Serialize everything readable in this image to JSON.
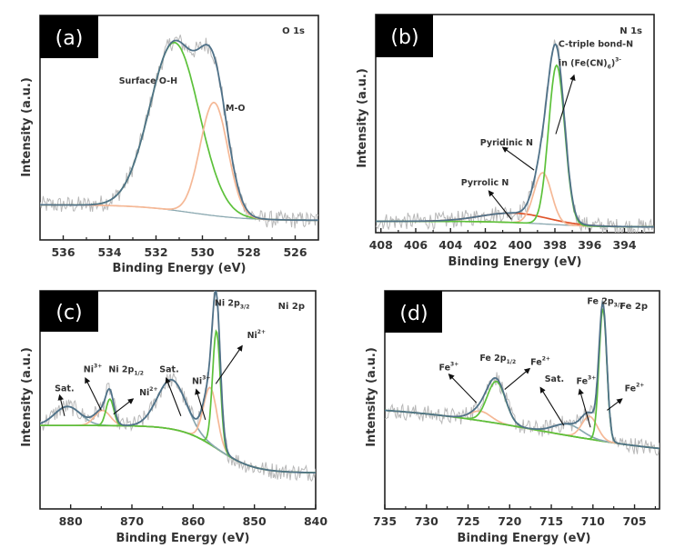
{
  "figure": {
    "colors": {
      "raw": "#b8b8b8",
      "envelope": "#4f7188",
      "component_green": "#5cc13a",
      "component_orange": "#f5b896",
      "component_red": "#e0552b",
      "background_line": "#8aa8b0",
      "axis": "#222222",
      "tag_bg": "#000000"
    }
  },
  "chart_data": [
    {
      "type": "line",
      "panel": "(a)",
      "title": "O 1s",
      "xlabel": "Binding Energy (eV)",
      "ylabel": "Intensity (a.u.)",
      "xlim": [
        537,
        525
      ],
      "ylim": [
        0,
        1.15
      ],
      "x_reversed": true,
      "xticks": [
        536,
        534,
        532,
        530,
        528,
        526
      ],
      "baseline": {
        "high_side": 0.18,
        "low_side": 0.1,
        "step_center": 530.5,
        "step_width": 1.2
      },
      "components": [
        {
          "name": "Surface O-H",
          "center": 531.2,
          "height": 0.86,
          "fwhm": 2.5,
          "color_key": "component_green"
        },
        {
          "name": "M-O",
          "center": 529.5,
          "height": 0.58,
          "fwhm": 1.4,
          "color_key": "component_orange"
        }
      ],
      "annotations": [
        {
          "text": "Surface O-H",
          "x": 533.6,
          "y": 0.8
        },
        {
          "text": "M-O",
          "x": 529.0,
          "y": 0.66
        }
      ],
      "legend": "none"
    },
    {
      "type": "line",
      "panel": "(b)",
      "title": "N 1s",
      "xlabel": "Binding Energy (eV)",
      "ylabel": "Intensity (a.u.)",
      "xlim": [
        408.3,
        392.3
      ],
      "ylim": [
        0,
        1.15
      ],
      "x_reversed": true,
      "xticks": [
        408,
        406,
        404,
        402,
        400,
        398,
        396,
        394
      ],
      "baseline": {
        "high_side": 0.06,
        "low_side": 0.03,
        "step_center": 398.5,
        "step_width": 1.5
      },
      "components": [
        {
          "name": "Pyrrolic N",
          "center": 400.3,
          "height": 0.05,
          "fwhm": 4.5,
          "color_key": "component_red"
        },
        {
          "name": "Pyridinic N",
          "center": 398.7,
          "height": 0.27,
          "fwhm": 1.2,
          "color_key": "component_orange"
        },
        {
          "name": "C-triple bond-N in (Fe(CN)6)3-",
          "center": 397.9,
          "height": 0.84,
          "fwhm": 1.1,
          "color_key": "component_green"
        }
      ],
      "annotations": [
        {
          "text": "C-triple bond-N",
          "x": 397.8,
          "y": 0.98
        },
        {
          "text": "in (Fe(CN)",
          "x": 397.8,
          "y": 0.88,
          "sub": "6",
          "sup": "3-",
          "tail": ")"
        },
        {
          "text": "Pyridinic N",
          "x": 402.3,
          "y": 0.46
        },
        {
          "text": "Pyrrolic N",
          "x": 403.4,
          "y": 0.25
        }
      ],
      "legend": "none"
    },
    {
      "type": "line",
      "panel": "(c)",
      "title": "Ni 2p",
      "xlabel": "Binding Energy (eV)",
      "ylabel": "Intensity (a.u.)",
      "xlim": [
        885,
        840
      ],
      "ylim": [
        0,
        1.15
      ],
      "x_reversed": true,
      "xticks": [
        880,
        870,
        860,
        850,
        840
      ],
      "baseline": {
        "high_side": 0.44,
        "low_side": 0.19,
        "step_center": 856,
        "step_width": 3
      },
      "components": [
        {
          "name": "Sat.",
          "center": 880.5,
          "height": 0.1,
          "fwhm": 5,
          "color_key": "background_line"
        },
        {
          "name": "Ni3+ (2p1/2)",
          "center": 874.8,
          "height": 0.08,
          "fwhm": 3,
          "color_key": "component_orange"
        },
        {
          "name": "Ni2+ (2p1/2)",
          "center": 873.6,
          "height": 0.14,
          "fwhm": 1.5,
          "color_key": "component_green"
        },
        {
          "name": "Sat.",
          "center": 863.5,
          "height": 0.26,
          "fwhm": 5.5,
          "color_key": "background_line"
        },
        {
          "name": "Ni3+ (2p3/2)",
          "center": 857.2,
          "height": 0.3,
          "fwhm": 2.6,
          "color_key": "component_orange"
        },
        {
          "name": "Ni2+ (2p3/2)",
          "center": 856.2,
          "height": 0.62,
          "fwhm": 1.5,
          "color_key": "component_green"
        }
      ],
      "annotations": [
        {
          "text": "Ni 2p",
          "sub": "3/2",
          "x": 856.5,
          "y": 1.07
        },
        {
          "text": "Ni",
          "sup": "2+",
          "x": 851.2,
          "y": 0.9
        },
        {
          "text": "Ni 2p",
          "sub": "1/2",
          "x": 873.8,
          "y": 0.72
        },
        {
          "text": "Ni",
          "sup": "3+",
          "x": 877.9,
          "y": 0.72
        },
        {
          "text": "Ni",
          "sup": "2+",
          "x": 868.8,
          "y": 0.6
        },
        {
          "text": "Sat.",
          "x": 882.6,
          "y": 0.62
        },
        {
          "text": "Sat.",
          "x": 865.5,
          "y": 0.72
        },
        {
          "text": "Ni",
          "sup": "3+",
          "x": 860.2,
          "y": 0.66
        }
      ],
      "legend": "none"
    },
    {
      "type": "line",
      "panel": "(d)",
      "title": "Fe 2p",
      "xlabel": "Binding Energy (eV)",
      "ylabel": "Intensity (a.u.)",
      "xlim": [
        735,
        702
      ],
      "ylim": [
        0,
        1.15
      ],
      "x_reversed": true,
      "xticks": [
        735,
        730,
        725,
        720,
        715,
        710,
        705
      ],
      "baseline": {
        "high_side": 0.55,
        "low_side": 0.27,
        "step_center": 716,
        "step_width": 9
      },
      "components": [
        {
          "name": "Fe3+ (2p1/2)",
          "center": 723.5,
          "height": 0.05,
          "fwhm": 3,
          "color_key": "component_orange"
        },
        {
          "name": "Fe2+ (2p1/2)",
          "center": 721.6,
          "height": 0.22,
          "fwhm": 2.6,
          "color_key": "component_green"
        },
        {
          "name": "Sat.",
          "center": 713,
          "height": 0.06,
          "fwhm": 4,
          "color_key": "background_line"
        },
        {
          "name": "Fe3+ (2p3/2)",
          "center": 710.4,
          "height": 0.12,
          "fwhm": 2.2,
          "color_key": "component_orange"
        },
        {
          "name": "Fe2+ (2p3/2)",
          "center": 708.8,
          "height": 0.7,
          "fwhm": 1.1,
          "color_key": "component_green"
        }
      ],
      "annotations": [
        {
          "text": "Fe 2p",
          "sub": "3/2",
          "x": 710.7,
          "y": 1.08
        },
        {
          "text": "Fe 2p",
          "sub": "1/2",
          "x": 723.6,
          "y": 0.78
        },
        {
          "text": "Fe",
          "sup": "3+",
          "x": 728.5,
          "y": 0.73
        },
        {
          "text": "Fe",
          "sup": "2+",
          "x": 717.5,
          "y": 0.76
        },
        {
          "text": "Sat.",
          "x": 715.8,
          "y": 0.67
        },
        {
          "text": "Fe",
          "sup": "3+",
          "x": 712.0,
          "y": 0.66
        },
        {
          "text": "Fe",
          "sup": "2+",
          "x": 706.2,
          "y": 0.62
        }
      ],
      "legend": "none"
    }
  ],
  "panels": [
    {
      "tag": "(a)",
      "element": "O 1s",
      "xlabel": "Binding Energy (eV)",
      "ylabel": "Intensity (a.u.)"
    },
    {
      "tag": "(b)",
      "element": "N 1s",
      "xlabel": "Binding Energy (eV)",
      "ylabel": "Intensity (a.u.)"
    },
    {
      "tag": "(c)",
      "element": "Ni 2p",
      "xlabel": "Binding Energy (eV)",
      "ylabel": "Intensity (a.u.)"
    },
    {
      "tag": "(d)",
      "element": "Fe 2p",
      "xlabel": "Binding Energy (eV)",
      "ylabel": "Intensity (a.u.)"
    }
  ]
}
